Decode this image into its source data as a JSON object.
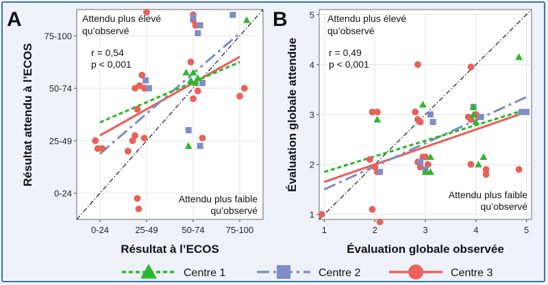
{
  "chart_data": [
    {
      "panel": "A",
      "type": "scatter",
      "xlabel": "Résultat à l’ECOS",
      "ylabel": "Résultat attendu à l’ECOS",
      "x_categories": [
        "0-24",
        "25-49",
        "50-74",
        "75-100"
      ],
      "y_categories": [
        "0-24",
        "25-49",
        "50-74",
        "75-100"
      ],
      "xlim": [
        -0.5,
        3.5
      ],
      "ylim": [
        -0.5,
        3.5
      ],
      "annotation_top": [
        "Attendu plus élevé",
        "qu’observé"
      ],
      "annotation_bottom": [
        "Attendu plus faible",
        "qu’observé"
      ],
      "stats": {
        "r": "r = 0,54",
        "p": "p < 0,001"
      },
      "series": [
        {
          "name": "Centre 1",
          "color": "#2cb82c",
          "marker": "triangle",
          "points": [
            [
              1.85,
              2.3
            ],
            [
              1.95,
              2.15
            ],
            [
              2.0,
              2.3
            ],
            [
              2.05,
              2.1
            ],
            [
              2.1,
              2.2
            ],
            [
              1.9,
              0.9
            ],
            [
              3.15,
              3.3
            ]
          ],
          "fit": [
            [
              0.0,
              1.35
            ],
            [
              3.0,
              2.5
            ]
          ]
        },
        {
          "name": "Centre 2",
          "color": "#7f8ec6",
          "marker": "square",
          "points": [
            [
              1.05,
              2.0
            ],
            [
              0.98,
              2.15
            ],
            [
              2.0,
              3.35
            ],
            [
              2.15,
              3.2
            ],
            [
              2.1,
              3.05
            ],
            [
              2.85,
              3.4
            ],
            [
              1.9,
              1.2
            ],
            [
              2.15,
              0.9
            ],
            [
              2.2,
              2.1
            ]
          ],
          "fit": [
            [
              0.0,
              0.75
            ],
            [
              3.0,
              3.05
            ]
          ]
        },
        {
          "name": "Centre 3",
          "color": "#e8615a",
          "marker": "circle",
          "points": [
            [
              -0.1,
              1.0
            ],
            [
              -0.05,
              0.85
            ],
            [
              0.05,
              0.85
            ],
            [
              0.6,
              0.8
            ],
            [
              0.7,
              1.0
            ],
            [
              0.75,
              1.1
            ],
            [
              0.8,
              1.6
            ],
            [
              0.75,
              2.0
            ],
            [
              0.85,
              2.05
            ],
            [
              0.9,
              2.25
            ],
            [
              0.95,
              2.0
            ],
            [
              0.8,
              -0.1
            ],
            [
              0.83,
              -0.3
            ],
            [
              1.0,
              3.45
            ],
            [
              2.0,
              3.4
            ],
            [
              2.0,
              3.3
            ],
            [
              2.05,
              3.2
            ],
            [
              1.95,
              2.5
            ],
            [
              2.1,
              1.95
            ],
            [
              2.2,
              1.05
            ],
            [
              3.0,
              1.85
            ],
            [
              3.1,
              2.0
            ],
            [
              2.0,
              1.8
            ],
            [
              0.95,
              1.05
            ]
          ],
          "fit": [
            [
              0.0,
              1.1
            ],
            [
              3.0,
              2.6
            ]
          ]
        }
      ]
    },
    {
      "panel": "B",
      "type": "scatter",
      "xlabel": "Évaluation globale observée",
      "ylabel": "Évaluation globale attendue",
      "xlim": [
        0.9,
        5.1
      ],
      "ylim": [
        0.9,
        5.1
      ],
      "xticks": [
        1,
        2,
        3,
        4,
        5
      ],
      "yticks": [
        1,
        2,
        3,
        4,
        5
      ],
      "annotation_top": [
        "Attendu plus élevé",
        "qu’observé"
      ],
      "annotation_bottom": [
        "Attendu plus faible",
        "qu’observé"
      ],
      "stats": {
        "r": "r = 0,49",
        "p": "p < 0,001"
      },
      "series": [
        {
          "name": "Centre 1",
          "color": "#2cb82c",
          "marker": "triangle",
          "points": [
            [
              2.05,
              2.9
            ],
            [
              2.95,
              3.2
            ],
            [
              3.1,
              2.15
            ],
            [
              3.1,
              1.85
            ],
            [
              3.0,
              1.85
            ],
            [
              3.95,
              3.15
            ],
            [
              3.95,
              3.0
            ],
            [
              4.0,
              2.85
            ],
            [
              4.05,
              2.0
            ],
            [
              4.15,
              2.15
            ],
            [
              4.85,
              4.15
            ]
          ],
          "fit": [
            [
              1.0,
              1.85
            ],
            [
              5.0,
              3.1
            ]
          ]
        },
        {
          "name": "Centre 2",
          "color": "#7f8ec6",
          "marker": "square",
          "points": [
            [
              2.1,
              1.85
            ],
            [
              2.9,
              2.05
            ],
            [
              3.1,
              3.0
            ],
            [
              3.15,
              2.85
            ],
            [
              3.95,
              3.15
            ],
            [
              4.1,
              2.95
            ],
            [
              4.9,
              3.05
            ],
            [
              5.0,
              3.05
            ],
            [
              3.0,
              1.9
            ]
          ],
          "fit": [
            [
              1.0,
              1.5
            ],
            [
              5.0,
              3.35
            ]
          ]
        },
        {
          "name": "Centre 3",
          "color": "#e8615a",
          "marker": "circle",
          "points": [
            [
              0.95,
              1.0
            ],
            [
              1.95,
              3.05
            ],
            [
              2.05,
              3.05
            ],
            [
              1.9,
              2.1
            ],
            [
              2.0,
              1.95
            ],
            [
              2.05,
              1.85
            ],
            [
              2.1,
              0.85
            ],
            [
              1.95,
              1.1
            ],
            [
              2.8,
              3.05
            ],
            [
              2.85,
              2.9
            ],
            [
              2.9,
              2.85
            ],
            [
              2.85,
              4.0
            ],
            [
              2.85,
              2.05
            ],
            [
              2.9,
              1.95
            ],
            [
              3.0,
              2.15
            ],
            [
              3.05,
              2.0
            ],
            [
              2.95,
              2.15
            ],
            [
              3.9,
              3.95
            ],
            [
              3.85,
              2.95
            ],
            [
              3.9,
              2.9
            ],
            [
              4.0,
              3.0
            ],
            [
              4.05,
              2.95
            ],
            [
              3.9,
              2.0
            ],
            [
              4.2,
              1.9
            ],
            [
              4.2,
              1.8
            ],
            [
              4.85,
              1.9
            ]
          ],
          "fit": [
            [
              1.0,
              1.65
            ],
            [
              5.0,
              3.05
            ]
          ]
        }
      ]
    }
  ],
  "legend": [
    {
      "label": "Centre 1",
      "color": "#2cb82c",
      "marker": "triangle",
      "dash": "6,4"
    },
    {
      "label": "Centre 2",
      "color": "#7f8ec6",
      "marker": "square",
      "dash": "18,6,4,6"
    },
    {
      "label": "Centre 3",
      "color": "#e8615a",
      "marker": "circle",
      "dash": ""
    }
  ]
}
